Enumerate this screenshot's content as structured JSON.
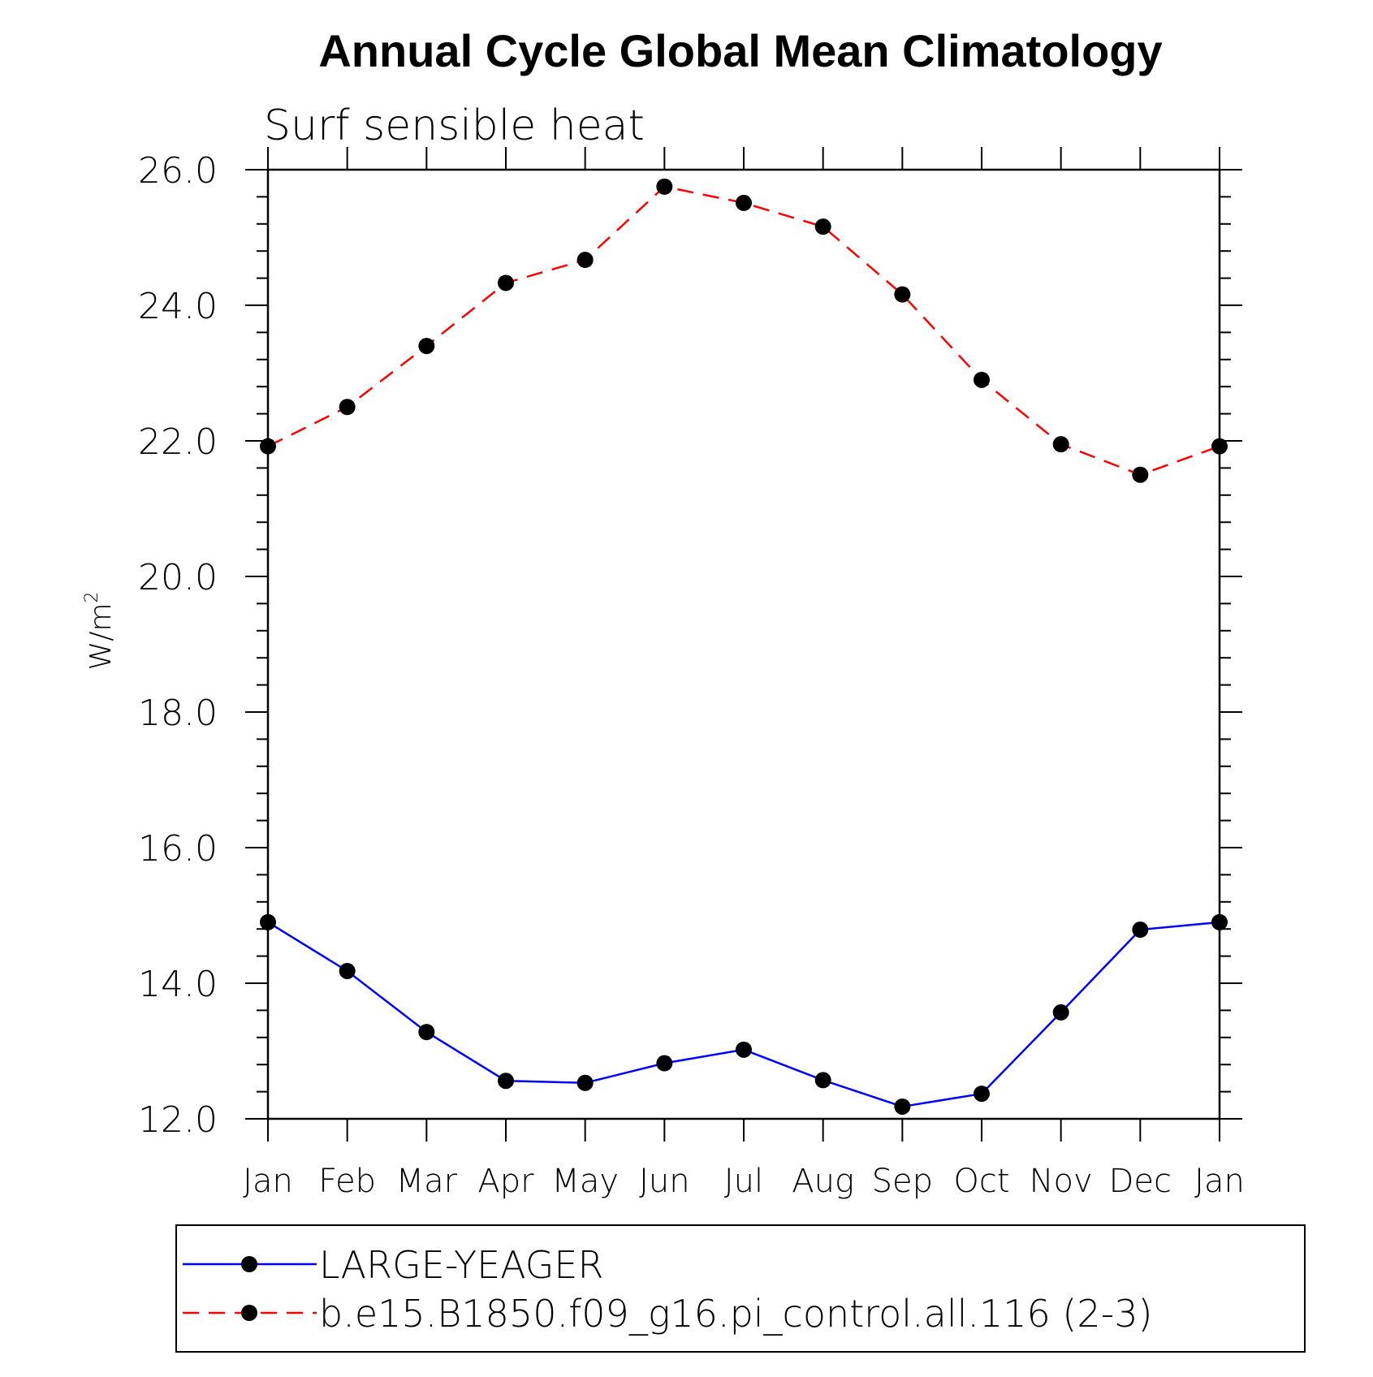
{
  "chart_data": {
    "type": "line",
    "title": "Annual Cycle Global Mean Climatology",
    "subtitle": "Surf sensible heat",
    "ylabel_base": "W/m",
    "ylabel_sup": "2",
    "categories": [
      "Jan",
      "Feb",
      "Mar",
      "Apr",
      "May",
      "Jun",
      "Jul",
      "Aug",
      "Sep",
      "Oct",
      "Nov",
      "Dec",
      "Jan"
    ],
    "ylim": [
      12.0,
      26.0
    ],
    "yticks": [
      "12.0",
      "14.0",
      "16.0",
      "18.0",
      "20.0",
      "22.0",
      "24.0",
      "26.0"
    ],
    "series": [
      {
        "name": "LARGE-YEAGER",
        "color": "#0000ff",
        "dash": "solid",
        "marker": "circle",
        "values": [
          14.9,
          14.18,
          13.28,
          12.56,
          12.53,
          12.82,
          13.02,
          12.57,
          12.18,
          12.37,
          13.57,
          14.79,
          14.9
        ]
      },
      {
        "name": "b.e15.B1850.f09_g16.pi_control.all.116 (2-3)",
        "color": "#ff0000",
        "dash": "dashed",
        "marker": "circle",
        "values": [
          21.92,
          22.5,
          23.4,
          24.33,
          24.67,
          25.75,
          25.51,
          25.16,
          24.16,
          22.9,
          21.95,
          21.5,
          21.92
        ]
      }
    ],
    "legend_position": "bottom"
  }
}
